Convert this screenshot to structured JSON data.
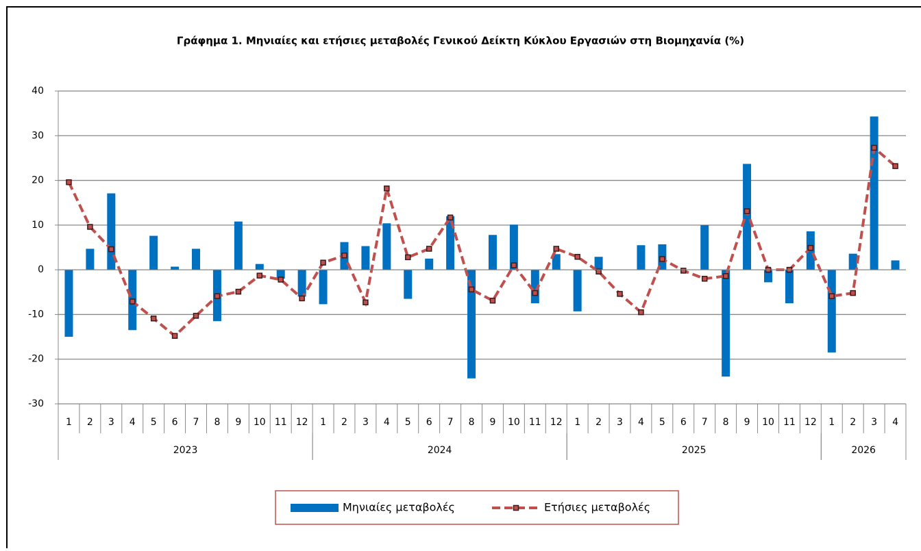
{
  "chart_data": {
    "type": "bar-line",
    "title": "Γράφημα 1. Μηνιαίες και ετήσιες μεταβολές  Γενικού Δείκτη Κύκλου Εργασιών στη Βιομηχανία (%)",
    "categories": [
      "1",
      "2",
      "3",
      "4",
      "5",
      "6",
      "7",
      "8",
      "9",
      "10",
      "11",
      "12",
      "1",
      "2",
      "3",
      "4",
      "5",
      "6",
      "7",
      "8",
      "9",
      "10",
      "11",
      "12",
      "1",
      "2",
      "3",
      "4",
      "5",
      "6",
      "7",
      "8",
      "9",
      "10",
      "11",
      "12",
      "1",
      "2",
      "3",
      "4"
    ],
    "category_groups": [
      {
        "label": "2023",
        "size": 12
      },
      {
        "label": "2024",
        "size": 12
      },
      {
        "label": "2025",
        "size": 12
      },
      {
        "label": "2026",
        "size": 4
      }
    ],
    "series": [
      {
        "name": "Μηνιαίες μεταβολές",
        "type": "bar",
        "color": "#0070c0",
        "values": [
          -15,
          4.7,
          17.1,
          -13.5,
          7.6,
          0.7,
          4.7,
          -11.5,
          10.8,
          1.3,
          -2,
          -6,
          -7.7,
          6.2,
          5.3,
          10.4,
          -6.5,
          2.5,
          12,
          -24.3,
          7.8,
          10.1,
          -7.5,
          3.5,
          -9.3,
          2.9,
          0,
          5.5,
          5.7,
          0,
          10,
          -23.9,
          23.7,
          -2.8,
          -7.5,
          8.6,
          -18.5,
          3.6,
          34.3,
          2.1
        ]
      },
      {
        "name": "Ετήσιες μεταβολές",
        "type": "line",
        "color": "#c0504d",
        "values": [
          19.6,
          9.6,
          4.6,
          -7.1,
          -10.9,
          -14.8,
          -10.3,
          -5.9,
          -4.9,
          -1.3,
          -2.2,
          -6.4,
          1.6,
          3.2,
          -7.3,
          18.2,
          2.8,
          4.7,
          11.7,
          -4.4,
          -6.9,
          1.0,
          -5.2,
          4.7,
          2.9,
          -0.4,
          -5.4,
          -9.5,
          2.4,
          -0.2,
          -2.0,
          -1.4,
          13.1,
          0,
          0,
          4.9,
          -5.9,
          -5.2,
          27.3,
          23.2
        ]
      }
    ],
    "ylim": [
      -30,
      40
    ],
    "yticks": [
      -30,
      -20,
      -10,
      0,
      10,
      20,
      30,
      40
    ],
    "grid": true,
    "legend": "bottom"
  }
}
